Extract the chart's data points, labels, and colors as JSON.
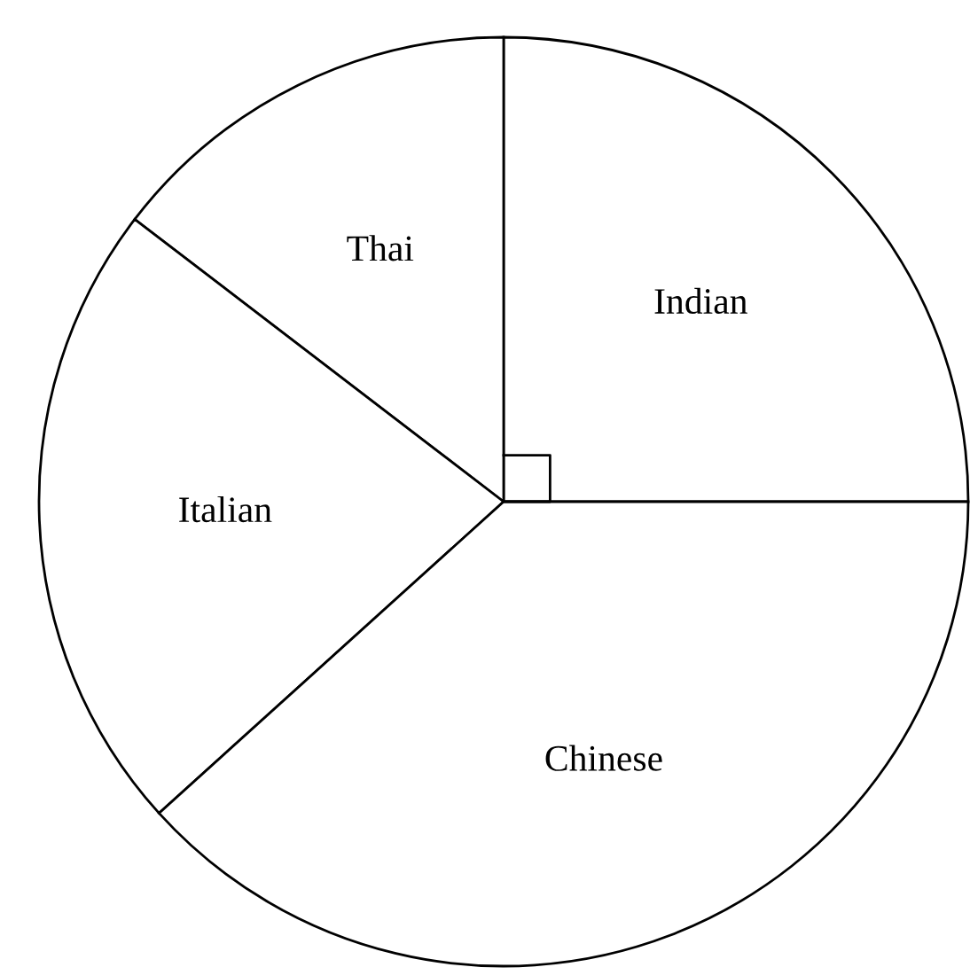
{
  "chart_data": {
    "type": "pie",
    "categories": [
      "Indian",
      "Thai",
      "Italian",
      "Chinese"
    ],
    "values": [
      25,
      14.6,
      22.1,
      38.3
    ],
    "colors": [
      "#ffffff",
      "#ffffff",
      "#ffffff",
      "#ffffff"
    ]
  }
}
